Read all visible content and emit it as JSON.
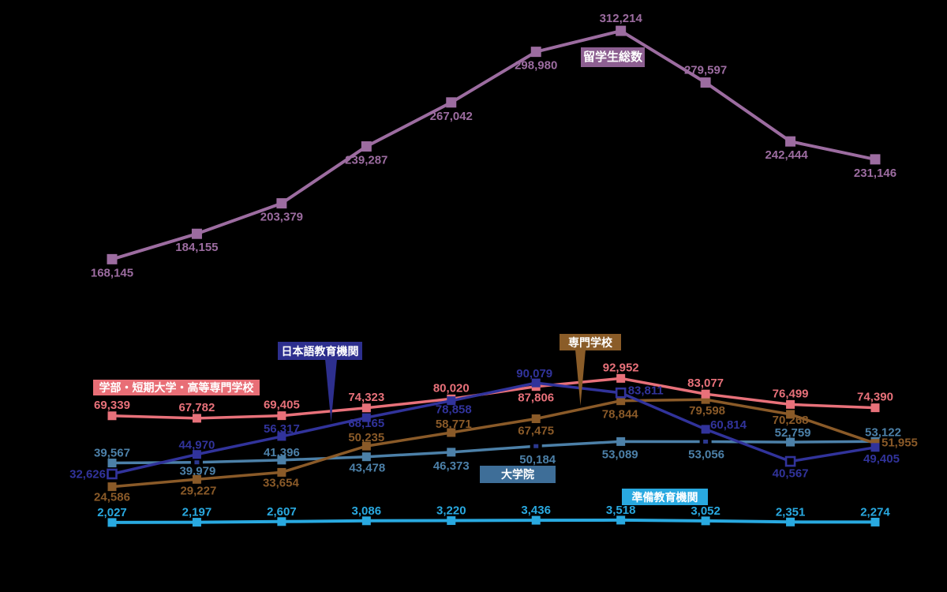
{
  "chart_data": {
    "type": "line",
    "title": "",
    "background": "#000000",
    "grid": false,
    "axes_visible": false,
    "legend_position": "inline-callout-boxes",
    "value_label_format": "thousands-comma",
    "points_per_series": 10,
    "series": [
      {
        "id": "total",
        "name": "留学生総数",
        "color": "#9C6CA0",
        "box_bg": "#8D5F91",
        "values": [
          168145,
          184155,
          203379,
          239287,
          267042,
          298980,
          312214,
          279597,
          242444,
          231146
        ]
      },
      {
        "id": "gakubu",
        "name": "学部・短期大学・高等専門学校",
        "color": "#E8717A",
        "box_bg": "#E86E76",
        "values": [
          69339,
          67782,
          69405,
          74323,
          80020,
          87806,
          92952,
          83077,
          76499,
          74390
        ]
      },
      {
        "id": "nihongo",
        "name": "日本語教育機関",
        "color": "#31339B",
        "box_bg": "#2D2F8E",
        "values": [
          32626,
          44970,
          56317,
          68165,
          78858,
          90079,
          83811,
          60814,
          40567,
          49405
        ],
        "open_points": [
          0,
          6,
          8
        ]
      },
      {
        "id": "senmon",
        "name": "専門学校",
        "color": "#8A5A28",
        "box_bg": "#8A5C28",
        "values": [
          24586,
          29227,
          33654,
          50235,
          58771,
          67475,
          78844,
          79598,
          70268,
          51955
        ]
      },
      {
        "id": "daigakuin",
        "name": "大学院",
        "color": "#4C80A8",
        "box_bg": "#3E6E98",
        "values": [
          39567,
          39979,
          41396,
          43478,
          46373,
          50184,
          53089,
          53056,
          52759,
          53122
        ],
        "dash_points": [
          1,
          5,
          7
        ]
      },
      {
        "id": "junbi",
        "name": "準備教育機関",
        "color": "#29A9E0",
        "box_bg": "#29A9E0",
        "values": [
          2027,
          2197,
          2607,
          3086,
          3220,
          3436,
          3518,
          3052,
          2351,
          2274
        ]
      }
    ]
  }
}
